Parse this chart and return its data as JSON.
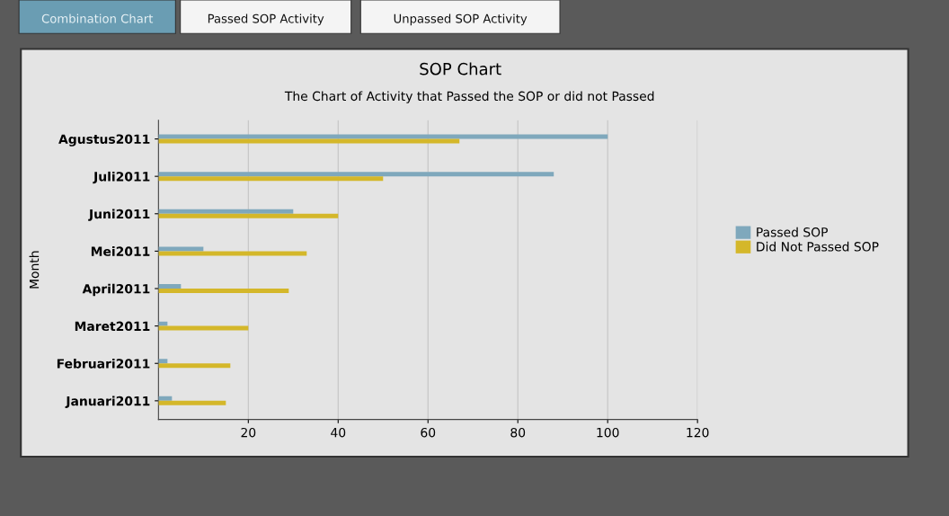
{
  "chart_data": {
    "type": "bar",
    "orientation": "horizontal",
    "title": "SOP Chart",
    "subtitle": "The Chart of Activity that Passed the SOP or did not Passed",
    "ylabel": "Month",
    "categories": [
      "Agustus2011",
      "Juli2011",
      "Juni2011",
      "Mei2011",
      "April2011",
      "Maret2011",
      "Februari2011",
      "Januari2011"
    ],
    "series": [
      {
        "name": "Passed SOP",
        "color": "#7fa8bc",
        "values": [
          100,
          88,
          30,
          10,
          5,
          2,
          2,
          3
        ]
      },
      {
        "name": "Did Not Passed SOP",
        "color": "#d4b72a",
        "values": [
          67,
          50,
          40,
          33,
          29,
          20,
          16,
          15
        ]
      }
    ],
    "xlim": [
      0,
      120
    ],
    "xticks": [
      20,
      40,
      60,
      80,
      100,
      120
    ],
    "grid": "x",
    "legend": "right",
    "annotations": [
      "Combination Chart",
      "Passed SOP Activity",
      "Unpassed SOP Activity"
    ]
  }
}
